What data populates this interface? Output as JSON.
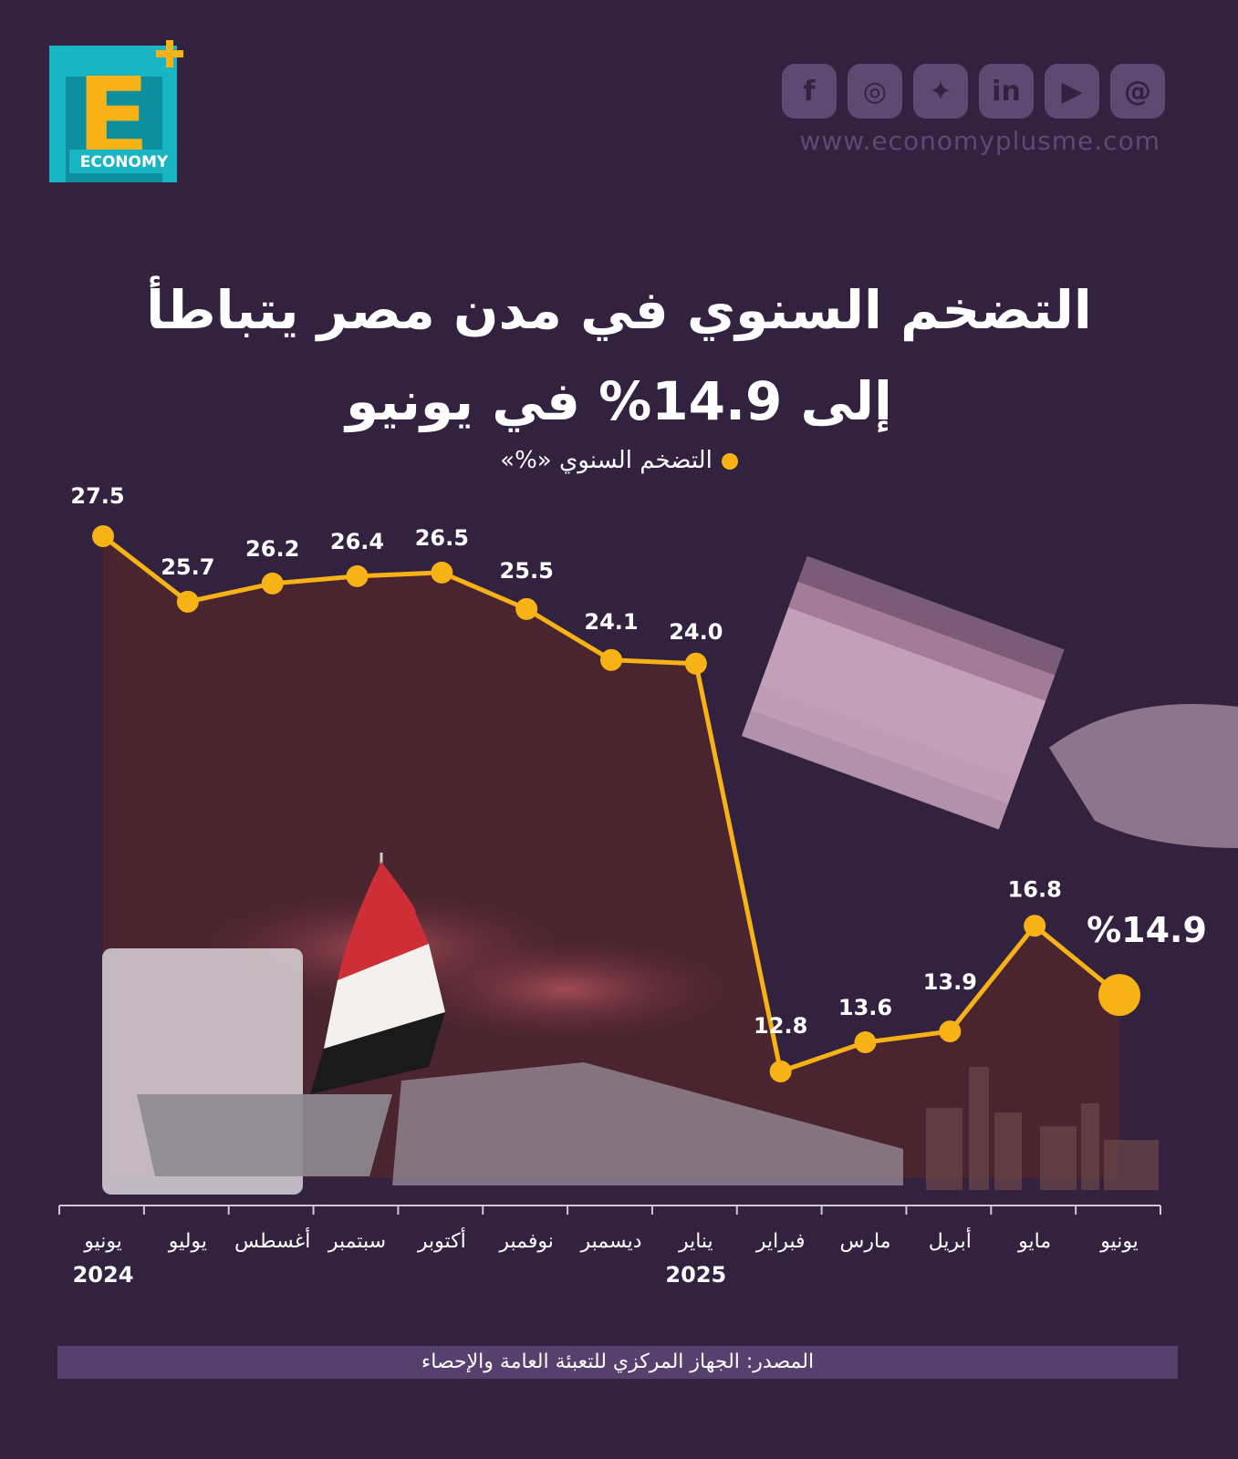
{
  "brand": {
    "logo_letter": "E",
    "logo_word": "ECONOMY",
    "website": "www.economyplusme.com"
  },
  "social_icons": [
    "facebook-icon",
    "instagram-icon",
    "twitter-icon",
    "linkedin-icon",
    "youtube-icon",
    "threads-icon"
  ],
  "colors": {
    "background": "#322240",
    "area": "#4a2530",
    "line": "#f7b316",
    "accent_bar": "#56406e"
  },
  "title_line1": "التضخم السنوي في مدن مصر يتباطأ",
  "title_line2": "إلى 14.9% في يونيو",
  "legend_label": "التضخم السنوي «%»",
  "highlight_label": "%14.9",
  "source": "المصدر: الجهاز المركزي للتعبئة العامة والإحصاء",
  "chart_data": {
    "type": "area",
    "categories": [
      "يونيو",
      "يوليو",
      "أغسطس",
      "سبتمبر",
      "أكتوبر",
      "نوفمبر",
      "ديسمبر",
      "يناير",
      "فبراير",
      "مارس",
      "أبريل",
      "مايو",
      "يونيو"
    ],
    "year_labels": [
      {
        "index": 0,
        "label": "2024"
      },
      {
        "index": 7,
        "label": "2025"
      }
    ],
    "series": [
      {
        "name": "التضخم السنوي «%»",
        "values": [
          27.5,
          25.7,
          26.2,
          26.4,
          26.5,
          25.5,
          24.1,
          24.0,
          12.8,
          13.6,
          13.9,
          16.8,
          14.9
        ]
      }
    ],
    "value_labels": [
      "27.5",
      "25.7",
      "26.2",
      "26.4",
      "26.5",
      "25.5",
      "24.1",
      "24.0",
      "12.8",
      "13.6",
      "13.9",
      "16.8",
      ""
    ],
    "grid": false,
    "legend_position": "top-center"
  }
}
